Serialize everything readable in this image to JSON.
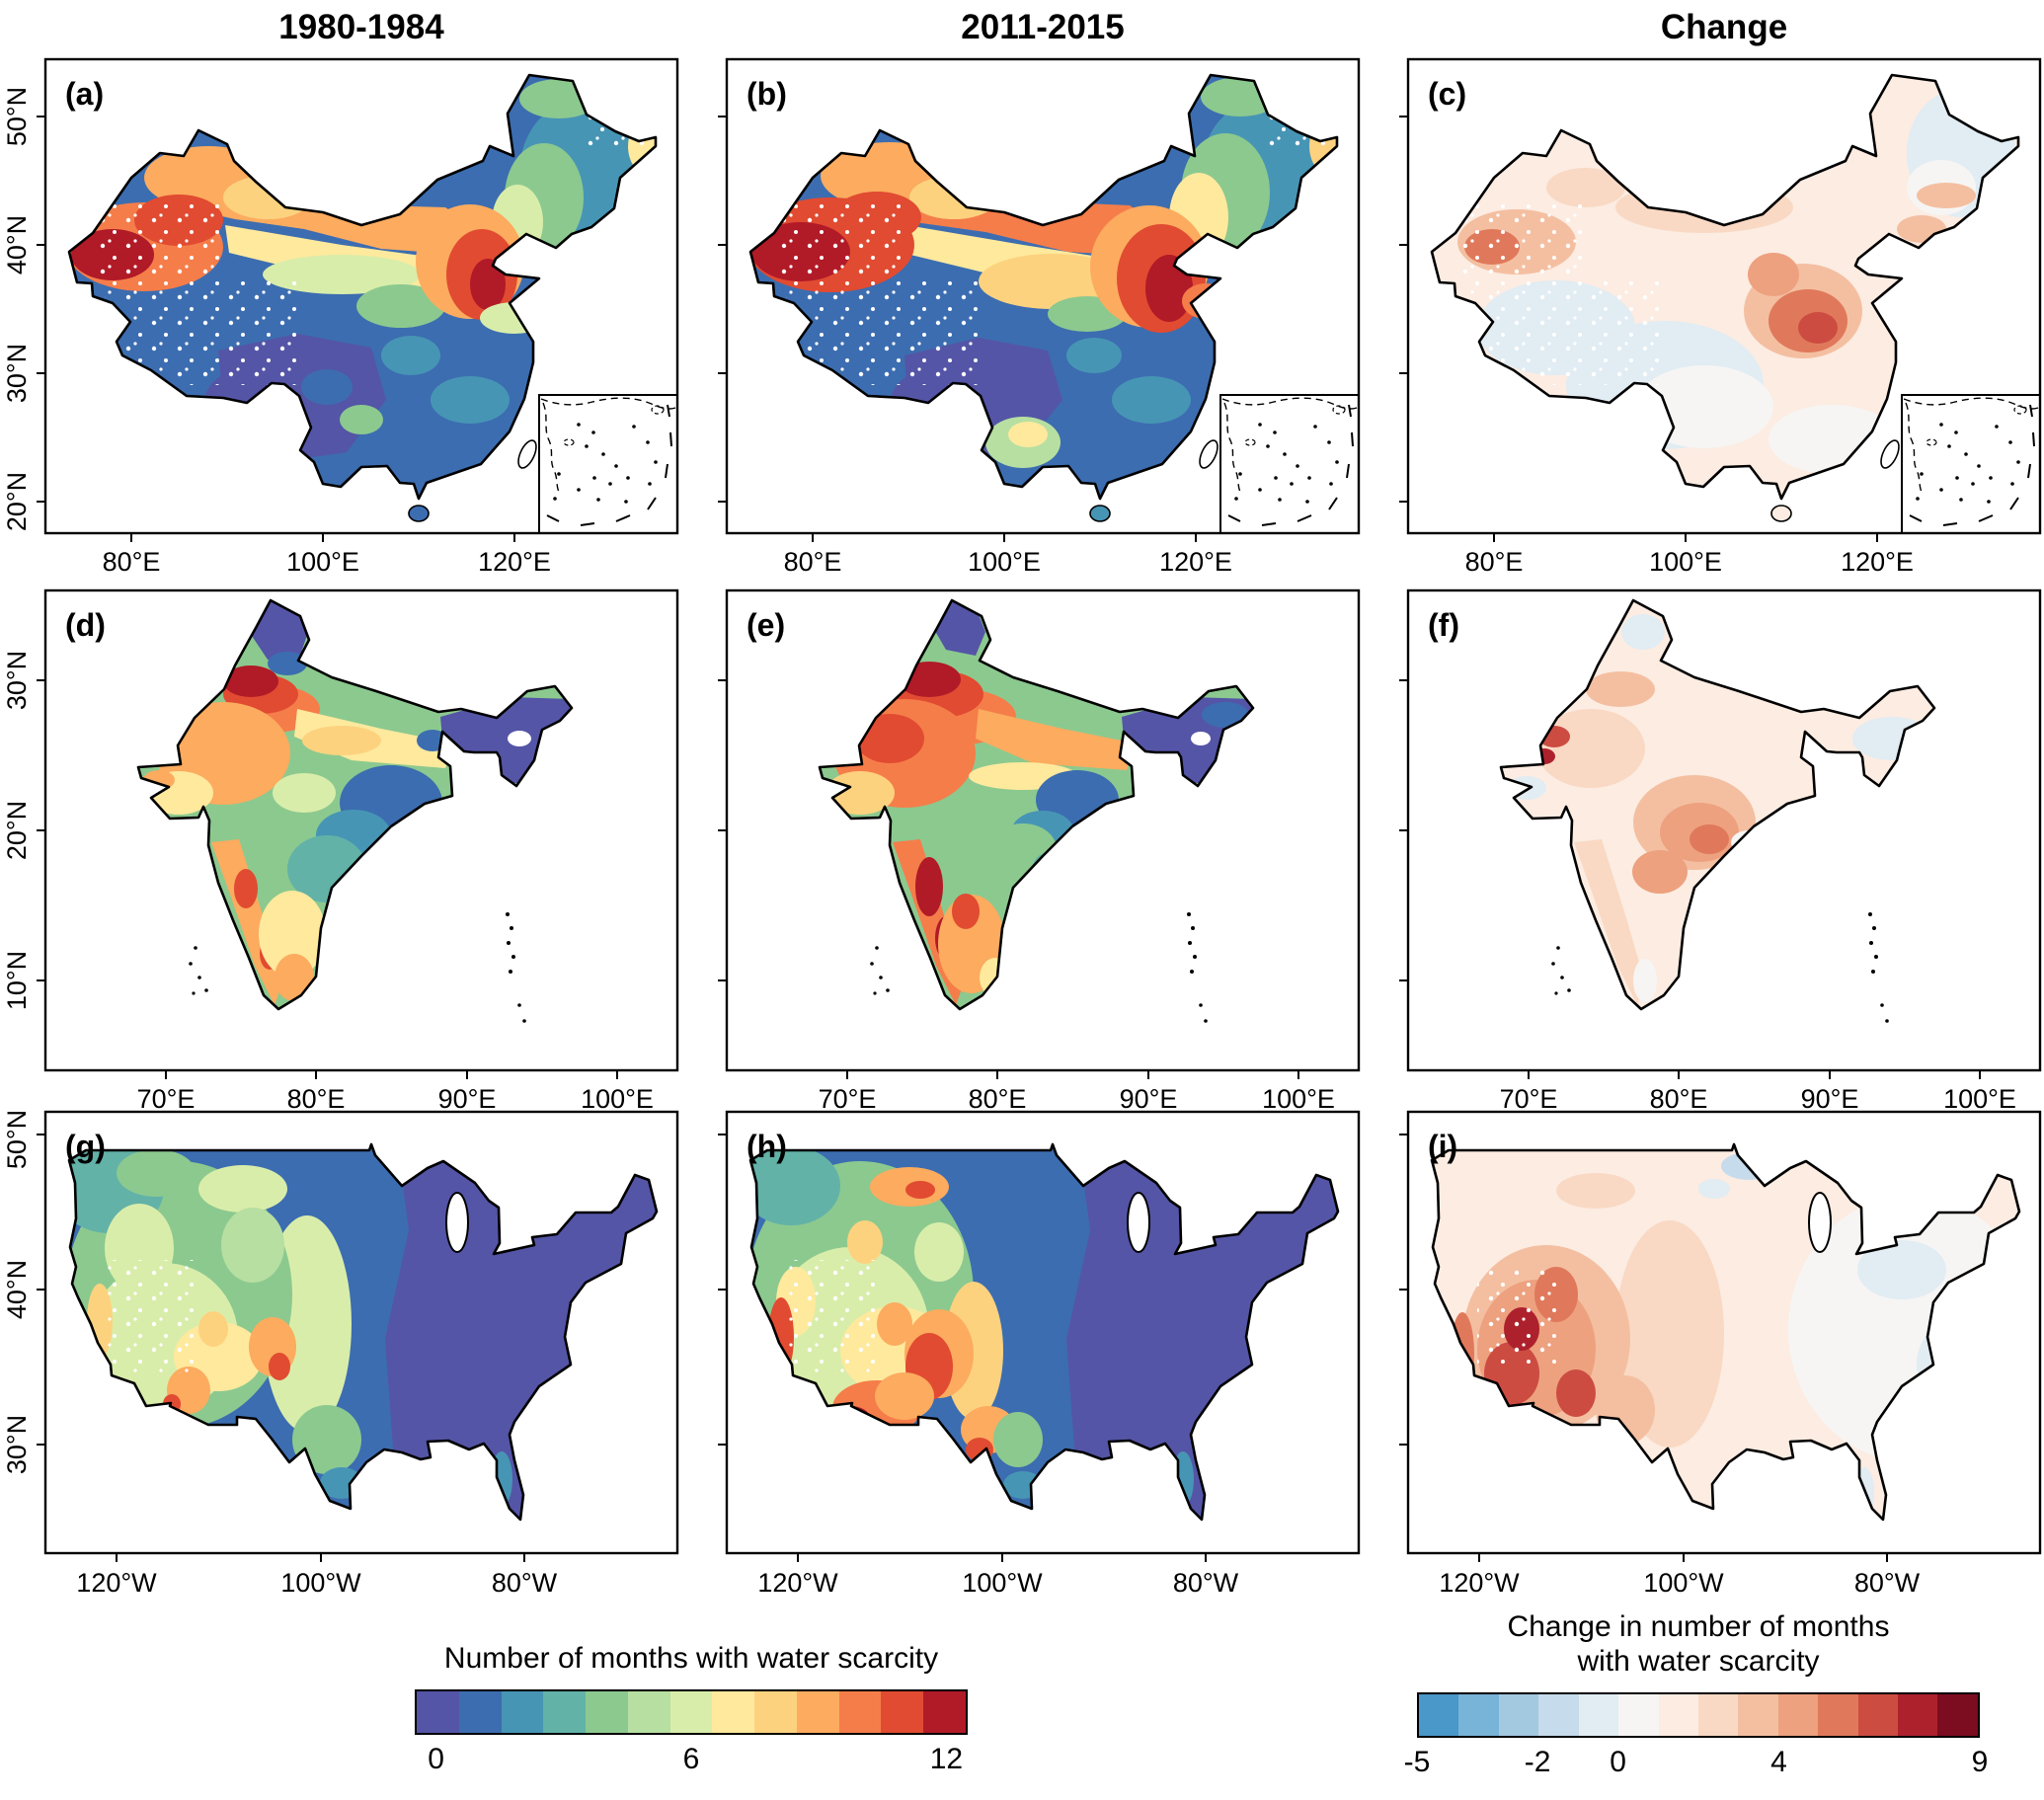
{
  "figure": {
    "column_titles": [
      "1980-1984",
      "2011-2015",
      "Change"
    ],
    "panels": {
      "a": "(a)",
      "b": "(b)",
      "c": "(c)",
      "d": "(d)",
      "e": "(e)",
      "f": "(f)",
      "g": "(g)",
      "h": "(h)",
      "i": "(i)"
    },
    "axes": {
      "china": {
        "x": [
          "80°E",
          "100°E",
          "120°E"
        ],
        "y": [
          "50°N",
          "40°N",
          "30°N",
          "20°N"
        ]
      },
      "india": {
        "x": [
          "70°E",
          "80°E",
          "90°E",
          "100°E"
        ],
        "y": [
          "30°N",
          "20°N",
          "10°N"
        ]
      },
      "usa": {
        "x": [
          "120°W",
          "100°W",
          "80°W"
        ],
        "y": [
          "50°N",
          "40°N",
          "30°N"
        ]
      }
    },
    "colorbars": {
      "scarcity": {
        "title": "Number of months with water scarcity",
        "ticks": [
          "0",
          "6",
          "12"
        ],
        "tick_pos": [
          0.0385,
          0.5,
          0.9615
        ],
        "colors": [
          "#5455a6",
          "#3c6db0",
          "#4795b5",
          "#62b2a8",
          "#8cc98f",
          "#b7dfa1",
          "#d9edaa",
          "#fee99d",
          "#fdd27f",
          "#fcab5f",
          "#f57d4a",
          "#e14b31",
          "#b11a27"
        ]
      },
      "change": {
        "title_lines": [
          "Change in number of months",
          "with water scarcity"
        ],
        "ticks": [
          "-5",
          "-2",
          "0",
          "4",
          "9"
        ],
        "tick_pos": [
          0.0,
          0.2143,
          0.3571,
          0.6429,
          1.0
        ],
        "colors": [
          "#4a97c9",
          "#78b3d8",
          "#a3c9e1",
          "#c6dbeb",
          "#e1ecf3",
          "#f6f5f3",
          "#fcece2",
          "#f9d9c4",
          "#f4bfa1",
          "#eda17f",
          "#e0795b",
          "#cc4c41",
          "#ad212d",
          "#7c0c20"
        ]
      }
    }
  }
}
